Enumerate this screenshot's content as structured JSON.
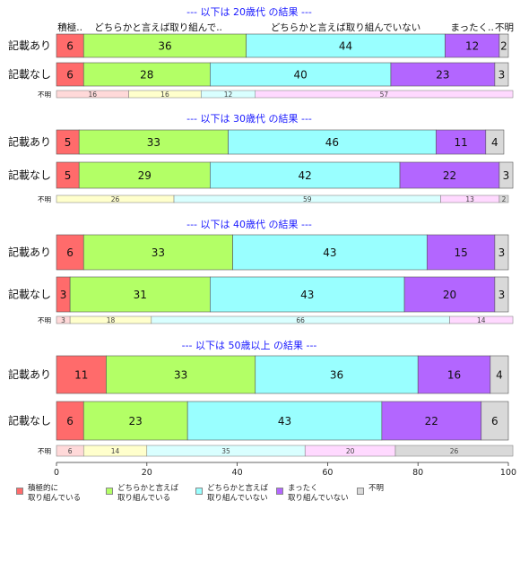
{
  "chart_data": {
    "type": "bar",
    "orientation": "horizontal-stacked-percent",
    "xlim": [
      0,
      100
    ],
    "x_ticks": [
      0,
      20,
      40,
      60,
      80,
      100
    ],
    "column_headers": [
      "積極..",
      "どちらかと言えば取り組んで..",
      "どちらかと言えば取り組んでいない",
      "まったく..",
      "不明"
    ],
    "series": [
      {
        "name": "積極的に\n取り組んでいる",
        "color": "#ff6b6b"
      },
      {
        "name": "どちらかと言えば\n取り組んでいる",
        "color": "#b3ff66"
      },
      {
        "name": "どちらかと言えば\n取り組んでいない",
        "color": "#99ffff"
      },
      {
        "name": "まったく\n取り組んでいない",
        "color": "#b366ff"
      },
      {
        "name": "不明",
        "color": "#d9d9d9"
      }
    ],
    "unknown_series_colors": [
      "#ffd9d9",
      "#ffffcc",
      "#d9ffff",
      "#ffd9ff",
      "#d9d9d9"
    ],
    "groups": [
      {
        "title": "--- 以下は 20歳代 の結果 ---",
        "rows": [
          {
            "label": "記載あり",
            "values": [
              6,
              36,
              44,
              12,
              2
            ]
          },
          {
            "label": "記載なし",
            "values": [
              6,
              28,
              40,
              23,
              3
            ]
          }
        ],
        "unknown": {
          "label": "不明",
          "segments": [
            {
              "series": 0,
              "value": 16
            },
            {
              "series": 1,
              "value": 16
            },
            {
              "series": 2,
              "value": 12
            },
            {
              "series": 3,
              "value": 57
            }
          ]
        }
      },
      {
        "title": "--- 以下は 30歳代 の結果 ---",
        "rows": [
          {
            "label": "記載あり",
            "values": [
              5,
              33,
              46,
              11,
              4
            ]
          },
          {
            "label": "記載なし",
            "values": [
              5,
              29,
              42,
              22,
              3
            ]
          }
        ],
        "unknown": {
          "label": "不明",
          "segments": [
            {
              "series": 1,
              "value": 26
            },
            {
              "series": 2,
              "value": 59
            },
            {
              "series": 3,
              "value": 13
            },
            {
              "series": 4,
              "value": 2
            }
          ]
        }
      },
      {
        "title": "--- 以下は 40歳代 の結果 ---",
        "rows": [
          {
            "label": "記載あり",
            "values": [
              6,
              33,
              43,
              15,
              3
            ]
          },
          {
            "label": "記載なし",
            "values": [
              3,
              31,
              43,
              20,
              3
            ]
          }
        ],
        "unknown": {
          "label": "不明",
          "segments": [
            {
              "series": 0,
              "value": 3
            },
            {
              "series": 1,
              "value": 18
            },
            {
              "series": 2,
              "value": 66
            },
            {
              "series": 3,
              "value": 14
            }
          ]
        }
      },
      {
        "title": "--- 以下は 50歳以上 の結果 ---",
        "rows": [
          {
            "label": "記載あり",
            "values": [
              11,
              33,
              36,
              16,
              4
            ]
          },
          {
            "label": "記載なし",
            "values": [
              6,
              23,
              43,
              22,
              6
            ]
          }
        ],
        "unknown": {
          "label": "不明",
          "segments": [
            {
              "series": 0,
              "value": 6
            },
            {
              "series": 1,
              "value": 14
            },
            {
              "series": 2,
              "value": 35
            },
            {
              "series": 3,
              "value": 20
            },
            {
              "series": 4,
              "value": 26
            }
          ]
        }
      }
    ]
  }
}
